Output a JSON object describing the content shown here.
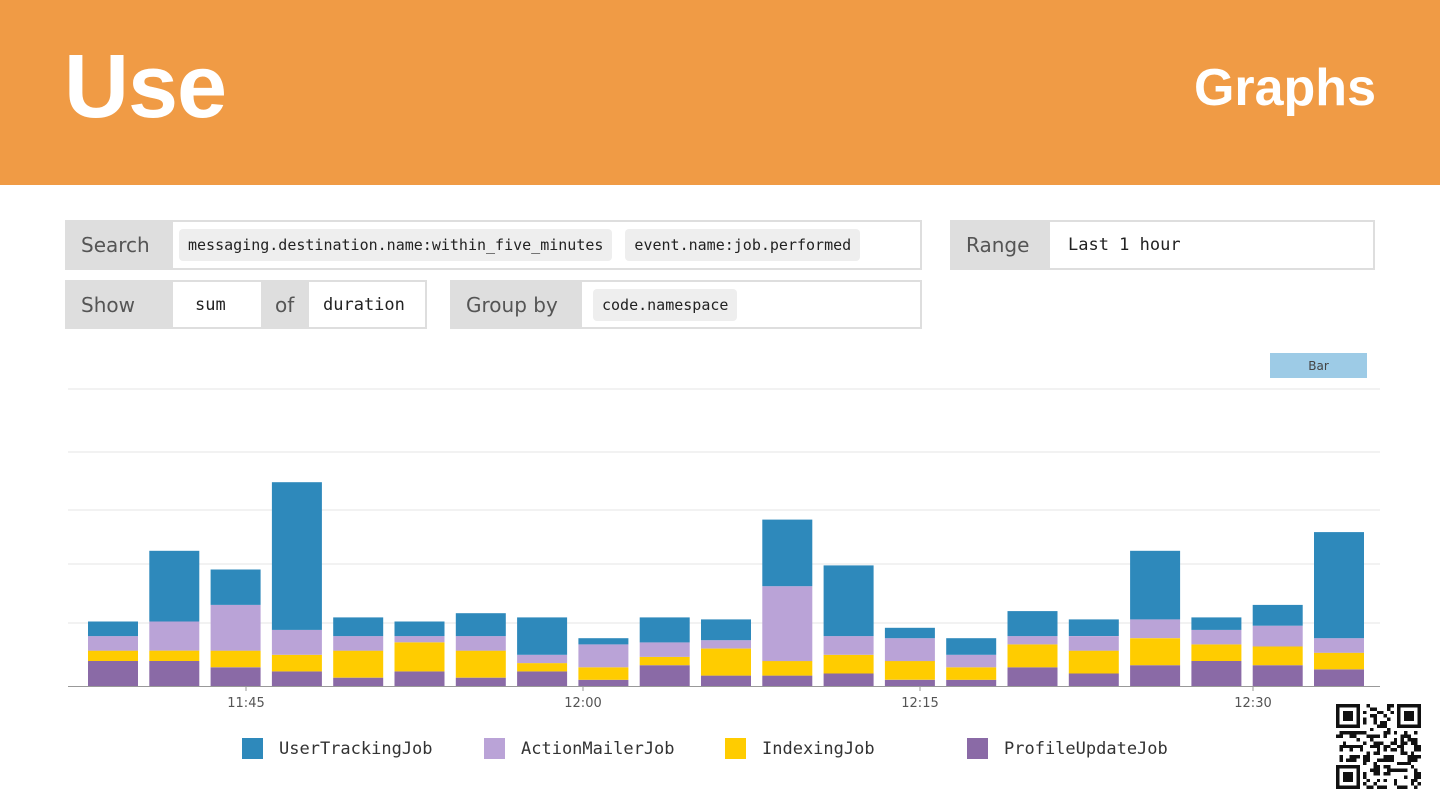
{
  "banner": {
    "title": "Use",
    "subtitle": "Graphs",
    "color": "#f09b45"
  },
  "query": {
    "search_label": "Search",
    "search_terms": [
      "messaging.destination.name:within_five_minutes",
      "event.name:job.performed"
    ],
    "range_label": "Range",
    "range_value": "Last 1 hour",
    "show_label": "Show",
    "aggregation": "sum",
    "of_label": "of",
    "field": "duration",
    "group_by_label": "Group by",
    "group_by_value": "code.namespace"
  },
  "toggle": {
    "label": "Bar"
  },
  "chart_data": {
    "type": "bar",
    "stacked": true,
    "x_tick_labels": [
      "11:45",
      "12:00",
      "12:15",
      "12:30"
    ],
    "grid": true,
    "legend_position": "bottom",
    "series": [
      {
        "name": "ProfileUpdateJob",
        "color": "#8a6aa6",
        "values": [
          12,
          12,
          9,
          7,
          4,
          7,
          4,
          7,
          3,
          10,
          5,
          5,
          6,
          3,
          3,
          9,
          6,
          10,
          12,
          10,
          8
        ]
      },
      {
        "name": "IndexingJob",
        "color": "#ffcc00",
        "values": [
          5,
          5,
          8,
          8,
          13,
          14,
          13,
          4,
          6,
          4,
          13,
          7,
          9,
          9,
          6,
          11,
          11,
          13,
          8,
          9,
          8
        ]
      },
      {
        "name": "ActionMailerJob",
        "color": "#baa3d7",
        "values": [
          7,
          14,
          22,
          12,
          7,
          3,
          7,
          4,
          11,
          7,
          4,
          36,
          9,
          11,
          6,
          4,
          7,
          9,
          7,
          10,
          7
        ]
      },
      {
        "name": "UserTrackingJob",
        "color": "#2e89bb",
        "values": [
          7,
          34,
          17,
          71,
          9,
          7,
          11,
          18,
          3,
          12,
          10,
          32,
          34,
          5,
          8,
          12,
          8,
          33,
          6,
          10,
          51
        ]
      }
    ]
  },
  "qr": {
    "label": "QR code"
  }
}
